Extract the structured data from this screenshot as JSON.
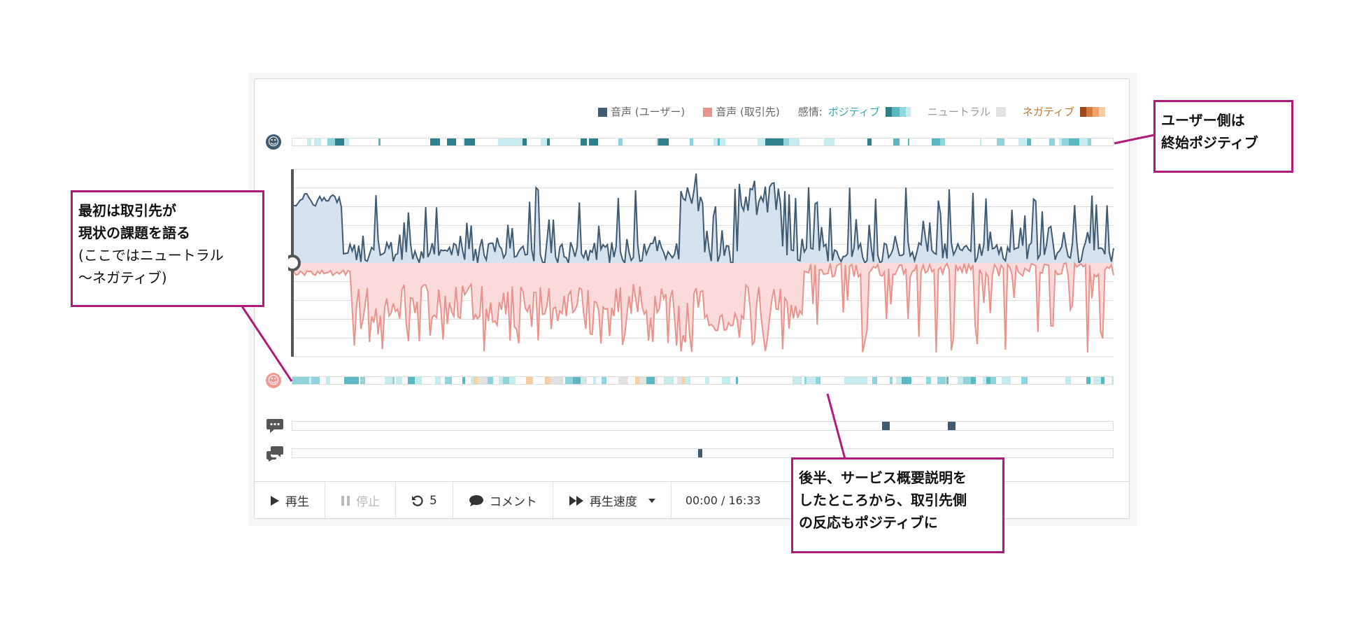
{
  "legend": {
    "user_voice": "音声 (ユーザー)",
    "partner_voice": "音声 (取引先)",
    "emotion_label": "感情:",
    "positive": "ポジティブ",
    "neutral": "ニュートラル",
    "negative": "ネガティブ",
    "colors": {
      "user": "#3f5a71",
      "partner": "#e8938d",
      "positive": "#3ba8b5",
      "negative": "#c0762e",
      "neutral": "#e2e2e2"
    }
  },
  "icons": {
    "user_emotion": "smiley-icon",
    "partner_emotion": "smiley-icon",
    "comment_track": "comment-bubbles-icon",
    "reply_track": "reply-bubbles-icon"
  },
  "controls": {
    "play": "再生",
    "stop": "停止",
    "rewind": "5",
    "comment": "コメント",
    "speed": "再生速度",
    "time": "00:00 / 16:33"
  },
  "callouts": {
    "user_side": {
      "lines": [
        "ユーザー側は",
        "終始ポジティブ"
      ]
    },
    "partner_start": {
      "bold_lines": [
        "最初は取引先が",
        "現状の課題を語る"
      ],
      "lines": [
        "(ここではニュートラル",
        "〜ネガティブ)"
      ]
    },
    "latter_half": {
      "lines": [
        "後半、サービス概要説明を",
        "したところから、取引先側",
        "の反応もポジティブに"
      ]
    }
  }
}
